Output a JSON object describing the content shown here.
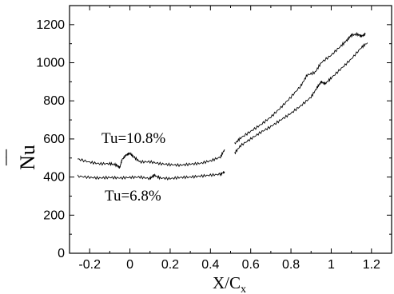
{
  "chart_data": {
    "type": "line",
    "xlabel": "X/C",
    "xlabel_sub": "x",
    "ylabel": "Nu",
    "xlim": [
      -0.3,
      1.3
    ],
    "ylim": [
      0,
      1300
    ],
    "xticks": [
      -0.2,
      0,
      0.2,
      0.4,
      0.6,
      0.8,
      1,
      1.2
    ],
    "xtick_labels": [
      "-0.2",
      "0",
      "0.2",
      "0.4",
      "0.6",
      "0.8",
      "1",
      "1.2"
    ],
    "yticks": [
      0,
      200,
      400,
      600,
      800,
      1000,
      1200
    ],
    "ytick_labels": [
      "0",
      "200",
      "400",
      "600",
      "800",
      "1000",
      "1200"
    ],
    "grid": false,
    "annotations": [
      "Tu=10.8%",
      "Tu=6.8%"
    ],
    "series": [
      {
        "segments": [
          [
            [
              -0.26,
              495
            ],
            [
              -0.2,
              478
            ],
            [
              -0.15,
              470
            ],
            [
              -0.1,
              470
            ],
            [
              -0.07,
              465
            ],
            [
              -0.05,
              450
            ],
            [
              -0.04,
              490
            ],
            [
              -0.02,
              515
            ],
            [
              0.0,
              525
            ],
            [
              0.02,
              505
            ],
            [
              0.05,
              480
            ],
            [
              0.1,
              480
            ],
            [
              0.15,
              470
            ],
            [
              0.2,
              465
            ],
            [
              0.25,
              462
            ],
            [
              0.3,
              468
            ],
            [
              0.35,
              472
            ],
            [
              0.4,
              485
            ],
            [
              0.45,
              505
            ],
            [
              0.47,
              545
            ]
          ],
          [
            [
              0.52,
              575
            ],
            [
              0.55,
              605
            ],
            [
              0.6,
              640
            ],
            [
              0.65,
              675
            ],
            [
              0.7,
              715
            ],
            [
              0.75,
              765
            ],
            [
              0.8,
              820
            ],
            [
              0.85,
              880
            ],
            [
              0.88,
              935
            ],
            [
              0.92,
              950
            ],
            [
              0.95,
              1000
            ],
            [
              1.0,
              1040
            ],
            [
              1.05,
              1090
            ],
            [
              1.08,
              1120
            ],
            [
              1.1,
              1145
            ],
            [
              1.13,
              1150
            ],
            [
              1.15,
              1140
            ],
            [
              1.17,
              1150
            ]
          ]
        ]
      },
      {
        "segments": [
          [
            [
              -0.26,
              405
            ],
            [
              -0.2,
              398
            ],
            [
              -0.15,
              395
            ],
            [
              -0.1,
              398
            ],
            [
              -0.05,
              395
            ],
            [
              0.0,
              398
            ],
            [
              0.05,
              400
            ],
            [
              0.1,
              392
            ],
            [
              0.12,
              410
            ],
            [
              0.15,
              395
            ],
            [
              0.2,
              392
            ],
            [
              0.25,
              398
            ],
            [
              0.3,
              400
            ],
            [
              0.35,
              405
            ],
            [
              0.4,
              410
            ],
            [
              0.45,
              415
            ],
            [
              0.47,
              428
            ]
          ],
          [
            [
              0.52,
              525
            ],
            [
              0.55,
              565
            ],
            [
              0.6,
              600
            ],
            [
              0.65,
              635
            ],
            [
              0.7,
              665
            ],
            [
              0.75,
              700
            ],
            [
              0.8,
              735
            ],
            [
              0.85,
              775
            ],
            [
              0.9,
              820
            ],
            [
              0.93,
              870
            ],
            [
              0.95,
              900
            ],
            [
              0.97,
              890
            ],
            [
              1.0,
              920
            ],
            [
              1.05,
              970
            ],
            [
              1.1,
              1020
            ],
            [
              1.15,
              1080
            ],
            [
              1.18,
              1105
            ]
          ]
        ]
      }
    ]
  }
}
